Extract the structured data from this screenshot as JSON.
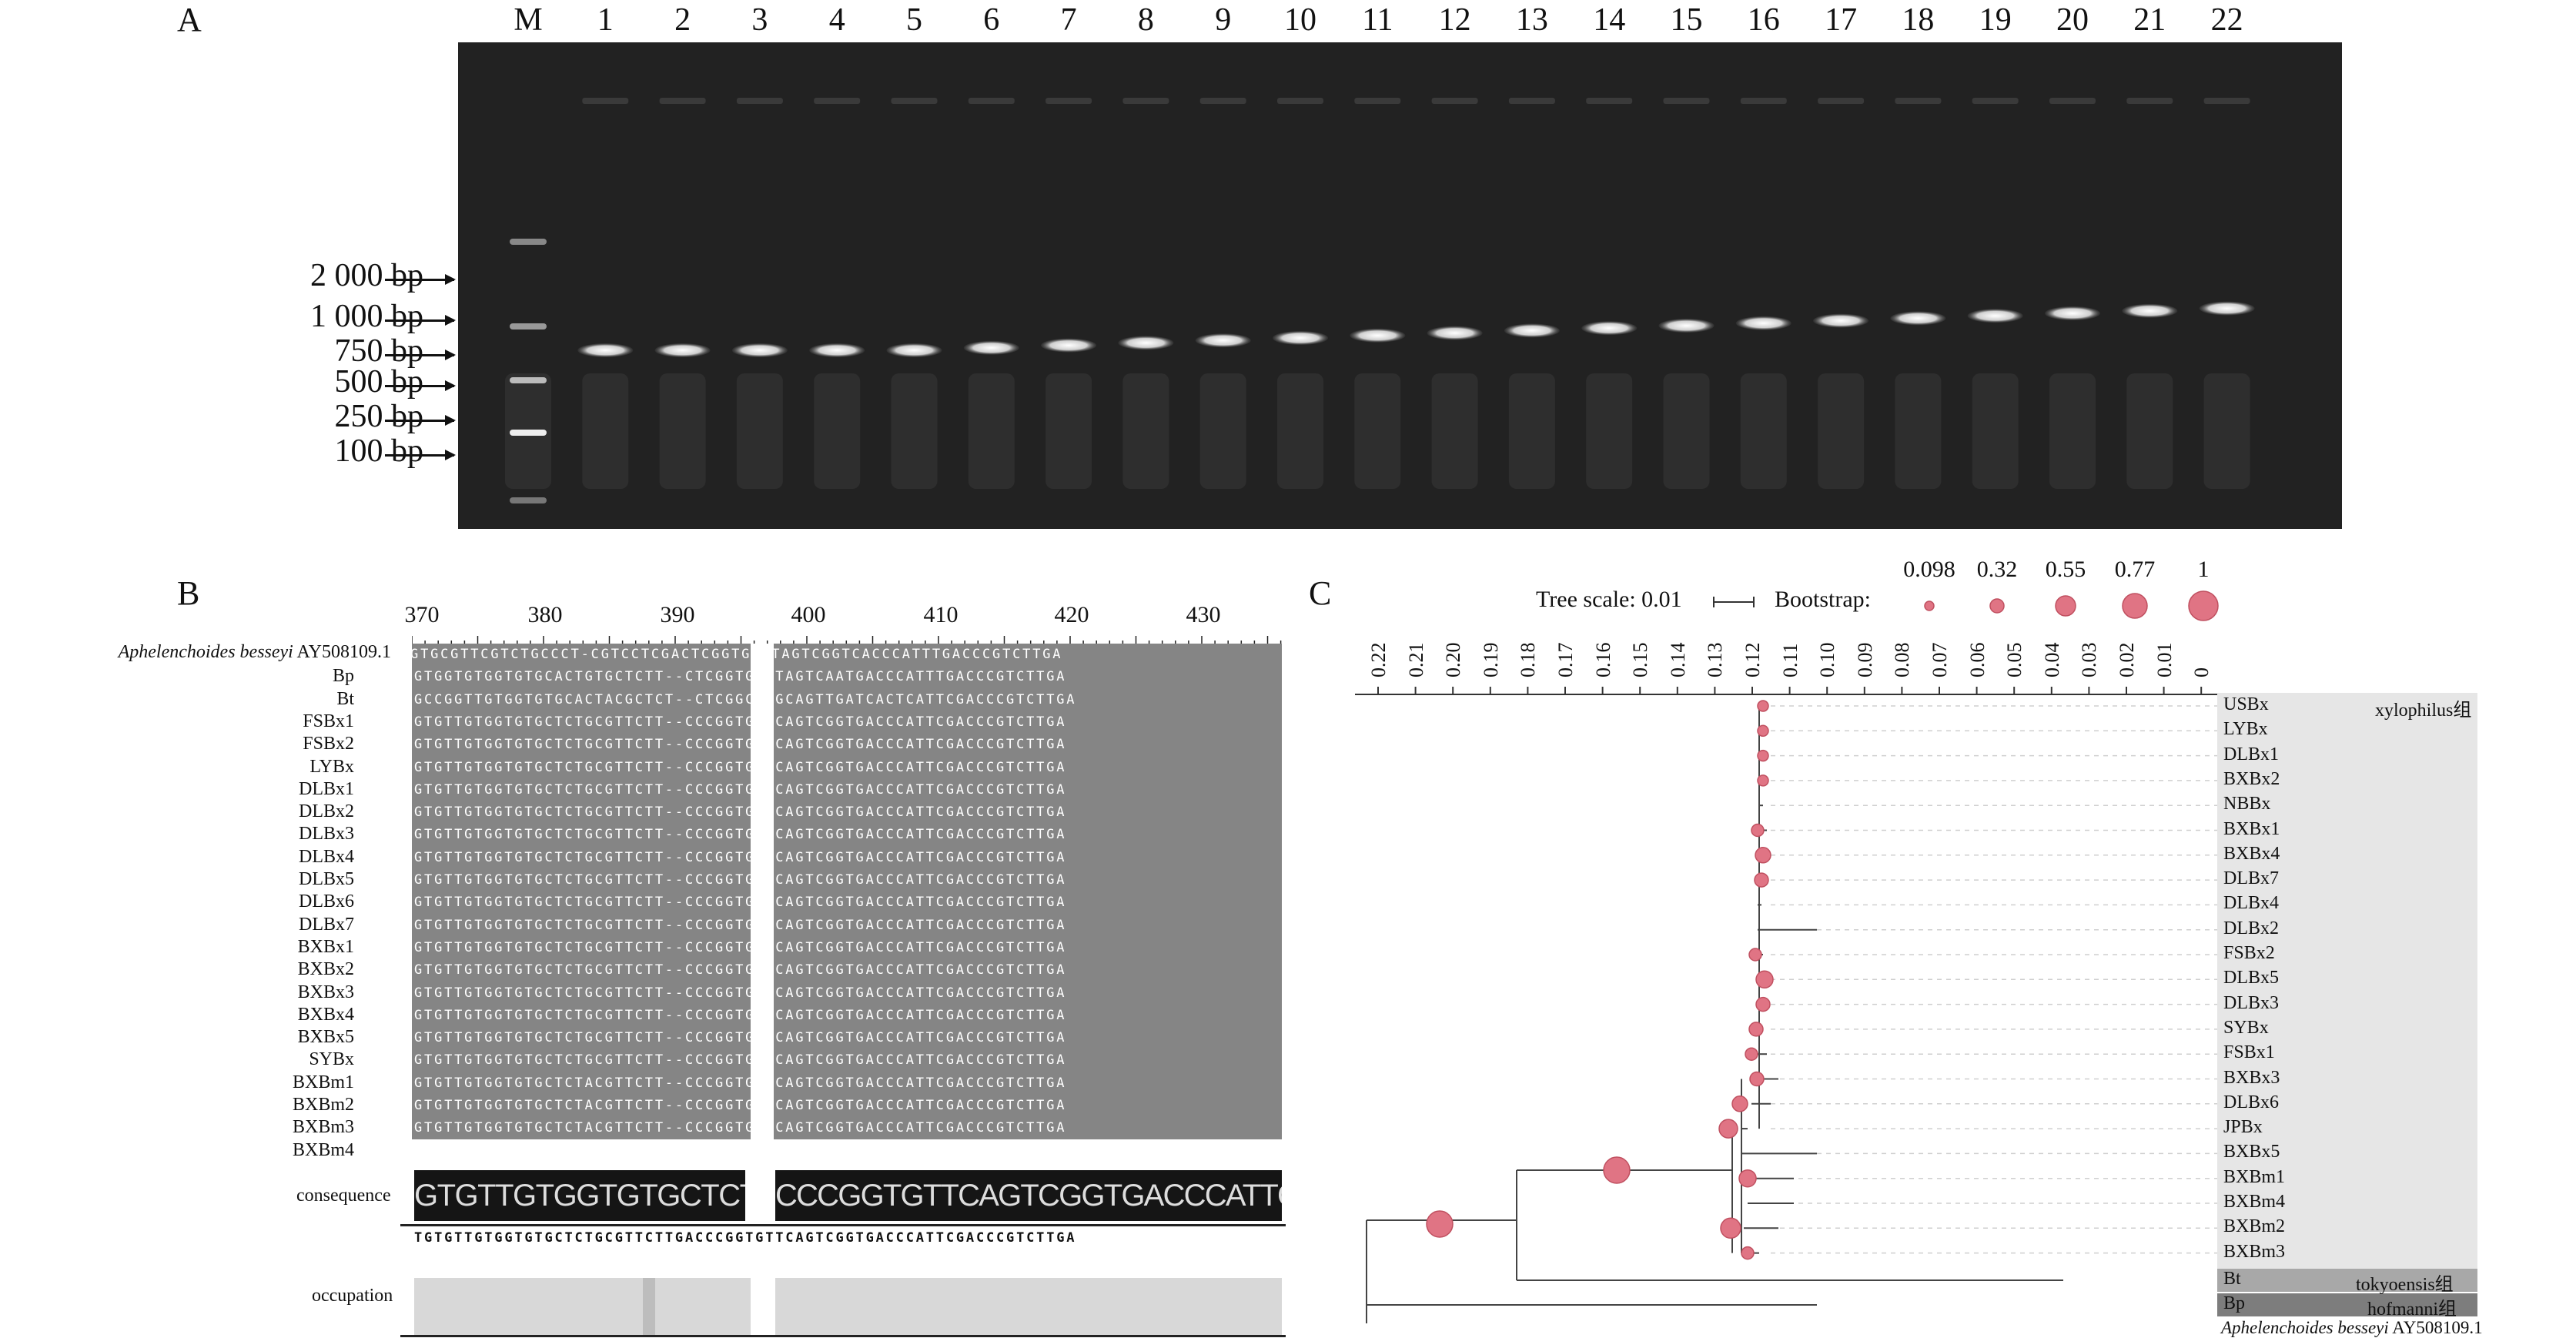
{
  "panel_a": {
    "letter": "A",
    "lane_labels": [
      "M",
      "1",
      "2",
      "3",
      "4",
      "5",
      "6",
      "7",
      "8",
      "9",
      "10",
      "11",
      "12",
      "13",
      "14",
      "15",
      "16",
      "17",
      "18",
      "19",
      "20",
      "21",
      "22"
    ],
    "ladder": [
      "2 000 bp",
      "1 000 bp",
      "750 bp",
      "500 bp",
      "250 bp",
      "100 bp"
    ]
  },
  "panel_b": {
    "letter": "B",
    "ruler": [
      "370",
      "380",
      "390",
      "400",
      "410",
      "420",
      "430"
    ],
    "reference_italic": "Aphelenchoides besseyi",
    "reference_acc": "AY508109.1",
    "sequence_names": [
      "Bp",
      "Bt",
      "FSBx1",
      "FSBx2",
      "LYBx",
      "DLBx1",
      "DLBx2",
      "DLBx3",
      "DLBx4",
      "DLBx5",
      "DLBx6",
      "DLBx7",
      "BXBx1",
      "BXBx2",
      "BXBx3",
      "BXBx4",
      "BXBx5",
      "SYBx",
      "BXBm1",
      "BXBm2",
      "BXBm3",
      "BXBm4"
    ],
    "consequence_label": "consequence",
    "occupation_label": "occupation",
    "consensus_seq": "TGTGTTGTGGTGTGCTCTGCGTTCTTGACCCGGTGTTCAGTCGGTGACCCATTCGACCCGTCTTGA",
    "logo_seq_left": "GTGTTGTGGTGTGCTCTGCGTTCTT",
    "logo_seq_right": "CCCGGTGTTCAGTCGGTGACCCATTCGACCCGTCTTGA",
    "row_seq": "GTGTTGTGGTGTGCTCTGCGTTCTT--CCCGGTGTTCAGTCGGTGACCCATTCGACCCGTCTTGA",
    "ref_seq": "TGTGCGTTCGTCTGCCCT-CGTCCTCGACTCGGTGTATAGTCGGTCACCCATTTGACCCGTCTTGA",
    "bp_seq": "GTGGTGTGGTGTGCACTGTGCTCTT--CTCGGTGTATAGTCAATGACCCATTTGACCCGTCTTGA",
    "bt_seq": "GCCGGTTGTGGTGTGCACTACGCTCT--CTCGGCGTGCAGTTGATCACTCATTCGACCCGTCTTGA",
    "bm_seq": "GTGTTGTGGTGTGCTCTACGTTCTT--CCCGGTGTTCAGTCGGTGACCCATTCGACCCGTCTTGA"
  },
  "panel_c": {
    "letter": "C",
    "tree_scale_label": "Tree scale: 0.01",
    "bootstrap_label": "Bootstrap:",
    "bootstrap_legend": [
      "0.098",
      "0.32",
      "0.55",
      "0.77",
      "1"
    ],
    "axis_ticks": [
      "0.22",
      "0.21",
      "0.20",
      "0.19",
      "0.18",
      "0.17",
      "0.16",
      "0.15",
      "0.14",
      "0.13",
      "0.12",
      "0.11",
      "0.10",
      "0.09",
      "0.08",
      "0.07",
      "0.06",
      "0.05",
      "0.04",
      "0.03",
      "0.02",
      "0.01",
      "0"
    ],
    "leaves": [
      "USBx",
      "LYBx",
      "DLBx1",
      "BXBx2",
      "NBBx",
      "BXBx1",
      "BXBx4",
      "DLBx7",
      "DLBx4",
      "DLBx2",
      "FSBx2",
      "DLBx5",
      "DLBx3",
      "SYBx",
      "FSBx1",
      "BXBx3",
      "DLBx6",
      "JPBx",
      "BXBx5",
      "BXBm1",
      "BXBm4",
      "BXBm2",
      "BXBm3"
    ],
    "group_xylophilus": "xylophilus组",
    "bt_leaf": "Bt",
    "group_tokyoensis": "tokyoensis组",
    "bp_leaf": "Bp",
    "group_hofmanni": "hofmanni组",
    "outgroup_italic": "Aphelenchoides besseyi",
    "outgroup_acc": "AY508109.1",
    "node_color": "#e07484",
    "group_fill_light": "#e6e6e6",
    "group_fill_mid": "#a8a8a8",
    "group_fill_dark": "#7d7d7d"
  }
}
